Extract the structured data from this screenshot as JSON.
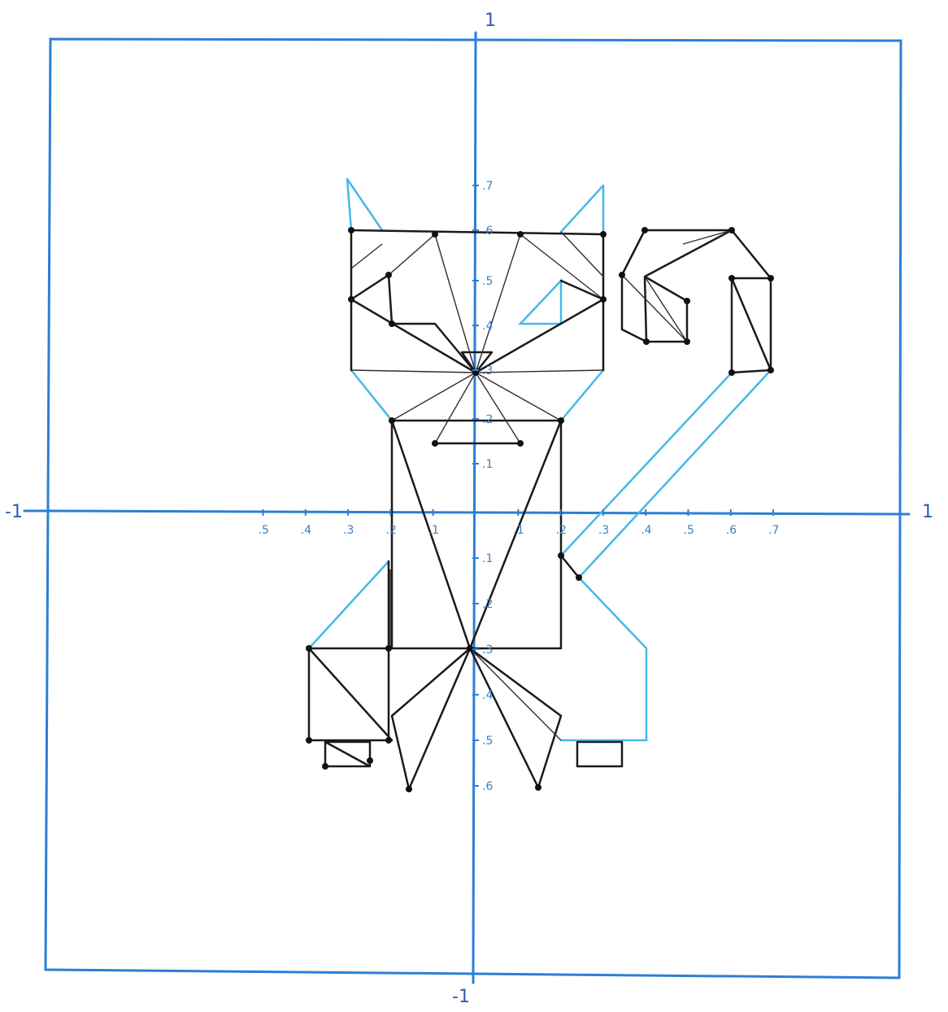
{
  "axes": {
    "top_label": "1",
    "bottom_label": "-1",
    "left_label": "-1",
    "right_label": "1"
  },
  "x_tick_labels_left": [
    ".5",
    ".4",
    ".3",
    ".2",
    ".1"
  ],
  "x_tick_labels_right": [
    ".1",
    ".2",
    ".3",
    ".4",
    ".5",
    ".6",
    ".7"
  ],
  "y_tick_labels_up": [
    ".7",
    ".6",
    ".5",
    ".4",
    ".3",
    ".2",
    ".1"
  ],
  "y_tick_labels_down": [
    ".1",
    ".2",
    ".3",
    ".4",
    ".5",
    ".6"
  ]
}
